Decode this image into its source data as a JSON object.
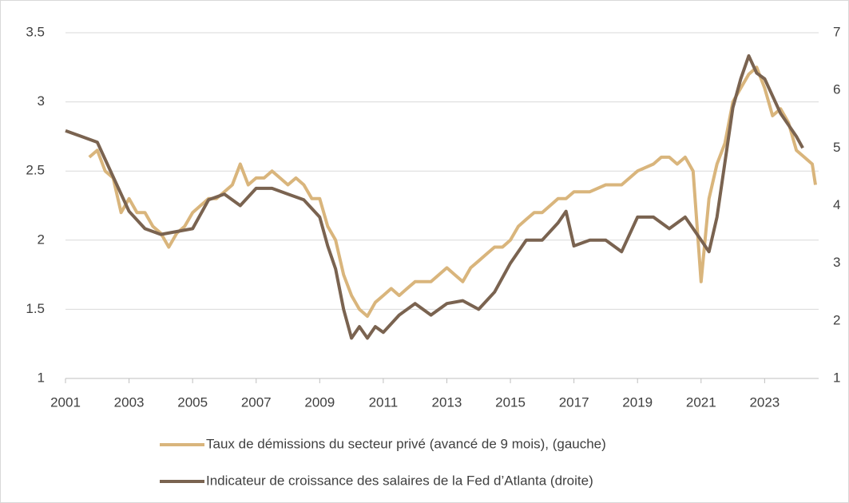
{
  "chart_data": {
    "type": "line",
    "xlim": [
      2001,
      2024.7
    ],
    "xticks": [
      2001,
      2003,
      2005,
      2007,
      2009,
      2011,
      2013,
      2015,
      2017,
      2019,
      2021,
      2023
    ],
    "ylim": [
      1,
      3.5
    ],
    "yticks": [
      1,
      1.5,
      2,
      2.5,
      3,
      3.5
    ],
    "y2lim": [
      1,
      7
    ],
    "y2ticks": [
      1,
      2,
      3,
      4,
      5,
      6,
      7
    ],
    "grid": true,
    "legend": "bottom",
    "series": [
      {
        "name": "Taux de démissions du secteur privé (avancé de 9 mois), (gauche)",
        "color": "#d9b57c",
        "x": [
          2001.75,
          2002,
          2002.25,
          2002.5,
          2002.75,
          2003,
          2003.25,
          2003.5,
          2003.75,
          2004,
          2004.25,
          2004.5,
          2004.75,
          2005,
          2005.25,
          2005.5,
          2005.75,
          2006,
          2006.25,
          2006.5,
          2006.75,
          2007,
          2007.25,
          2007.5,
          2007.75,
          2008,
          2008.25,
          2008.5,
          2008.75,
          2009,
          2009.25,
          2009.5,
          2009.75,
          2010,
          2010.25,
          2010.5,
          2010.75,
          2011,
          2011.25,
          2011.5,
          2011.75,
          2012,
          2012.25,
          2012.5,
          2012.75,
          2013,
          2013.25,
          2013.5,
          2013.75,
          2014,
          2014.25,
          2014.5,
          2014.75,
          2015,
          2015.25,
          2015.5,
          2015.75,
          2016,
          2016.25,
          2016.5,
          2016.75,
          2017,
          2017.5,
          2018,
          2018.5,
          2019,
          2019.5,
          2019.75,
          2020,
          2020.25,
          2020.5,
          2020.75,
          2021,
          2021.25,
          2021.5,
          2021.75,
          2022,
          2022.25,
          2022.5,
          2022.75,
          2023,
          2023.25,
          2023.5,
          2023.75,
          2024,
          2024.25,
          2024.5,
          2024.6
        ],
        "values": [
          2.6,
          2.65,
          2.5,
          2.45,
          2.2,
          2.3,
          2.2,
          2.2,
          2.1,
          2.05,
          1.95,
          2.05,
          2.1,
          2.2,
          2.25,
          2.3,
          2.3,
          2.35,
          2.4,
          2.55,
          2.4,
          2.45,
          2.45,
          2.5,
          2.45,
          2.4,
          2.45,
          2.4,
          2.3,
          2.3,
          2.1,
          2.0,
          1.75,
          1.6,
          1.5,
          1.45,
          1.55,
          1.6,
          1.65,
          1.6,
          1.65,
          1.7,
          1.7,
          1.7,
          1.75,
          1.8,
          1.75,
          1.7,
          1.8,
          1.85,
          1.9,
          1.95,
          1.95,
          2.0,
          2.1,
          2.15,
          2.2,
          2.2,
          2.25,
          2.3,
          2.3,
          2.35,
          2.35,
          2.4,
          2.4,
          2.5,
          2.55,
          2.6,
          2.6,
          2.55,
          2.6,
          2.5,
          1.7,
          2.3,
          2.55,
          2.7,
          3.0,
          3.1,
          3.2,
          3.25,
          3.1,
          2.9,
          2.95,
          2.85,
          2.65,
          2.6,
          2.55,
          2.4
        ]
      },
      {
        "name": "Indicateur de croissance des salaires de la Fed d’Atlanta (droite)",
        "color": "#7a6350",
        "axis": "y2",
        "x": [
          2001,
          2001.5,
          2002,
          2002.5,
          2003,
          2003.5,
          2004,
          2004.5,
          2005,
          2005.5,
          2006,
          2006.5,
          2007,
          2007.5,
          2008,
          2008.5,
          2009,
          2009.25,
          2009.5,
          2009.75,
          2010,
          2010.25,
          2010.5,
          2010.75,
          2011,
          2011.5,
          2012,
          2012.5,
          2013,
          2013.5,
          2014,
          2014.5,
          2015,
          2015.5,
          2016,
          2016.5,
          2016.75,
          2017,
          2017.5,
          2018,
          2018.5,
          2019,
          2019.5,
          2020,
          2020.5,
          2021,
          2021.25,
          2021.5,
          2022,
          2022.25,
          2022.5,
          2022.75,
          2023,
          2023.5,
          2024,
          2024.2
        ],
        "values": [
          5.3,
          5.2,
          5.1,
          4.5,
          3.9,
          3.6,
          3.5,
          3.55,
          3.6,
          4.1,
          4.2,
          4.0,
          4.3,
          4.3,
          4.2,
          4.1,
          3.8,
          3.3,
          2.9,
          2.2,
          1.7,
          1.9,
          1.7,
          1.9,
          1.8,
          2.1,
          2.3,
          2.1,
          2.3,
          2.35,
          2.2,
          2.5,
          3.0,
          3.4,
          3.4,
          3.7,
          3.9,
          3.3,
          3.4,
          3.4,
          3.2,
          3.8,
          3.8,
          3.6,
          3.8,
          3.4,
          3.2,
          3.8,
          5.7,
          6.2,
          6.6,
          6.3,
          6.2,
          5.6,
          5.2,
          5.0
        ]
      }
    ]
  }
}
